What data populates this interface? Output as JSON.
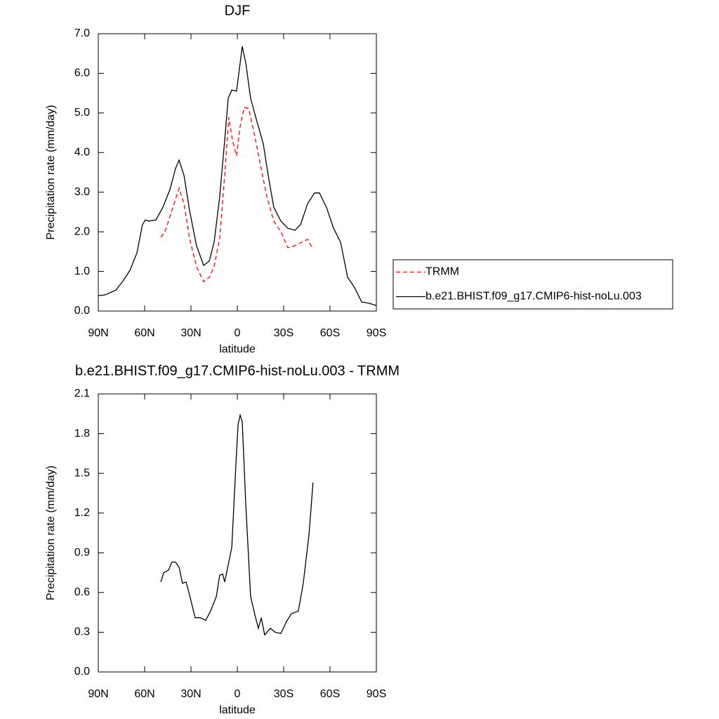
{
  "chart_data": [
    {
      "type": "line",
      "title": "DJF",
      "xlabel": "latitude",
      "ylabel": "Precipitation rate (mm/day)",
      "xlim": [
        90,
        -90
      ],
      "ylim": [
        0,
        7
      ],
      "xticks": [
        {
          "value": 90,
          "label": "90N"
        },
        {
          "value": 60,
          "label": "60N"
        },
        {
          "value": 30,
          "label": "30N"
        },
        0,
        {
          "value": -30,
          "label": "30S"
        },
        {
          "value": -60,
          "label": "60S"
        },
        {
          "value": -90,
          "label": "90S"
        }
      ],
      "yticks": [
        {
          "value": 0,
          "label": "0.0"
        },
        {
          "value": 1,
          "label": "1.0"
        },
        {
          "value": 2,
          "label": "2.0"
        },
        {
          "value": 3,
          "label": "3.0"
        },
        {
          "value": 4,
          "label": "4.0"
        },
        {
          "value": 5,
          "label": "5.0"
        },
        {
          "value": 6,
          "label": "6.0"
        },
        {
          "value": 7,
          "label": "7.0"
        }
      ],
      "legend": "right",
      "series": [
        {
          "name": "TRMM",
          "color": "#ff0000",
          "dashed": true,
          "x": [
            49.5,
            46.8,
            42.3,
            37.7,
            34.5,
            30.9,
            26.4,
            21.8,
            18.2,
            15,
            11.4,
            8.2,
            5.5,
            3.2,
            0.5,
            -1.8,
            -4.5,
            -7.3,
            -10.9,
            -14.5,
            -19.1,
            -23.6,
            -28.2,
            -32.7,
            -37.3,
            -41.8,
            -45.5,
            -49
          ],
          "values": [
            1.86,
            2.0,
            2.54,
            3.1,
            2.71,
            1.83,
            1.12,
            0.74,
            0.85,
            1.12,
            1.83,
            3.42,
            4.89,
            4.31,
            3.92,
            4.66,
            5.14,
            5.11,
            4.49,
            3.78,
            2.89,
            2.27,
            2.0,
            1.6,
            1.65,
            1.74,
            1.81,
            1.56
          ]
        },
        {
          "name": "b.e21.BHIST.f09_g17.CMIP6-hist-noLu.003",
          "color": "#000000",
          "dashed": false,
          "x": [
            90,
            85.5,
            78.6,
            74,
            69.5,
            65,
            61.4,
            59.5,
            57.3,
            52.7,
            48.2,
            43.6,
            40,
            37.7,
            34.5,
            30.9,
            26.4,
            21.8,
            18.2,
            15,
            11.4,
            8.2,
            5.9,
            3.6,
            0.5,
            -1.8,
            -3.2,
            -5.5,
            -8.6,
            -12.3,
            -16.8,
            -20,
            -23.6,
            -28.2,
            -32.7,
            -37.3,
            -40.9,
            -45.5,
            -50,
            -53.2,
            -57.7,
            -62.3,
            -66.8,
            -71.4,
            -75.9,
            -80.5,
            -85,
            -90
          ],
          "values": [
            0.39,
            0.41,
            0.53,
            0.76,
            1.03,
            1.47,
            2.18,
            2.3,
            2.27,
            2.3,
            2.62,
            3.07,
            3.6,
            3.81,
            3.42,
            2.54,
            1.65,
            1.15,
            1.26,
            1.74,
            2.89,
            4.31,
            5.37,
            5.58,
            5.55,
            6.26,
            6.68,
            6.26,
            5.37,
            4.84,
            4.22,
            3.42,
            2.62,
            2.27,
            2.09,
            2.04,
            2.18,
            2.71,
            2.98,
            2.98,
            2.62,
            2.09,
            1.74,
            0.85,
            0.59,
            0.23,
            0.2,
            0.14
          ]
        }
      ]
    },
    {
      "type": "line",
      "title": "b.e21.BHIST.f09_g17.CMIP6-hist-noLu.003 - TRMM",
      "xlabel": "latitude",
      "ylabel": "Precipitation rate (mm/day)",
      "xlim": [
        90,
        -90
      ],
      "ylim": [
        0,
        2.1
      ],
      "xticks": [
        {
          "value": 90,
          "label": "90N"
        },
        {
          "value": 60,
          "label": "60N"
        },
        {
          "value": 30,
          "label": "30N"
        },
        0,
        {
          "value": -30,
          "label": "30S"
        },
        {
          "value": -60,
          "label": "60S"
        },
        {
          "value": -90,
          "label": "90S"
        }
      ],
      "yticks": [
        {
          "value": 0,
          "label": "0.0"
        },
        0.3,
        0.6,
        0.9,
        1.2,
        1.5,
        1.8,
        2.1
      ],
      "color": "#000000",
      "x": [
        49.5,
        47.7,
        44.5,
        42.3,
        40,
        37.7,
        35.5,
        33.2,
        30.9,
        27.3,
        24.1,
        20.5,
        17.3,
        13.6,
        11.4,
        9.5,
        8.2,
        6.4,
        3.6,
        0.9,
        -0.5,
        -1.8,
        -3.2,
        -5.5,
        -8.6,
        -11.4,
        -13.6,
        -15.5,
        -17.7,
        -21.4,
        -24.5,
        -28.2,
        -31.8,
        -35,
        -39.5,
        -42.7,
        -46.4,
        -49
      ],
      "values": [
        0.68,
        0.75,
        0.77,
        0.83,
        0.83,
        0.79,
        0.67,
        0.68,
        0.58,
        0.41,
        0.41,
        0.39,
        0.46,
        0.57,
        0.73,
        0.74,
        0.68,
        0.78,
        0.94,
        1.57,
        1.87,
        1.94,
        1.89,
        1.26,
        0.57,
        0.43,
        0.33,
        0.41,
        0.28,
        0.33,
        0.3,
        0.29,
        0.38,
        0.44,
        0.46,
        0.67,
        1.04,
        1.43
      ]
    }
  ]
}
